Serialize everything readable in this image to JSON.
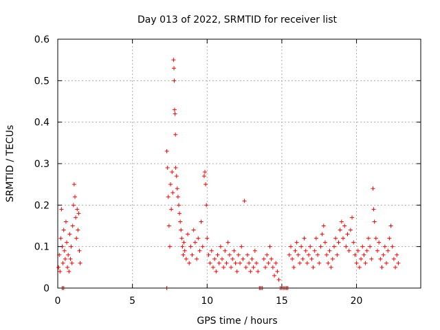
{
  "chart_data": {
    "type": "scatter",
    "title": "Day 013 of 2022, SRMTID for receiver list",
    "xlabel": "GPS time / hours",
    "ylabel": "SRMTID / TECUs",
    "xlim": [
      0,
      24.3
    ],
    "ylim": [
      0,
      0.6
    ],
    "xticks": [
      0,
      5,
      10,
      15,
      20
    ],
    "yticks": [
      0,
      0.1,
      0.2,
      0.3,
      0.4,
      0.5,
      0.6
    ],
    "xtick_labels": [
      "0",
      "5",
      "10",
      "15",
      "20"
    ],
    "ytick_labels": [
      "0",
      "0.1",
      "0.2",
      "0.3",
      "0.4",
      "0.5",
      "0.6"
    ],
    "grid": true,
    "marker": "+",
    "color": "#ff0000",
    "series": [
      {
        "name": "SRMTID",
        "points": [
          [
            0.05,
            0.05
          ],
          [
            0.1,
            0.08
          ],
          [
            0.15,
            0.04
          ],
          [
            0.2,
            0.12
          ],
          [
            0.25,
            0.19
          ],
          [
            0.3,
            0.1
          ],
          [
            0.35,
            0.06
          ],
          [
            0.4,
            0.14
          ],
          [
            0.45,
            0.09
          ],
          [
            0.5,
            0.07
          ],
          [
            0.55,
            0.16
          ],
          [
            0.6,
            0.11
          ],
          [
            0.65,
            0.05
          ],
          [
            0.7,
            0.08
          ],
          [
            0.75,
            0.04
          ],
          [
            0.8,
            0.13
          ],
          [
            0.85,
            0.07
          ],
          [
            0.9,
            0.1
          ],
          [
            0.95,
            0.06
          ],
          [
            1.0,
            0.15
          ],
          [
            1.05,
            0.2
          ],
          [
            1.1,
            0.25
          ],
          [
            1.15,
            0.22
          ],
          [
            1.2,
            0.17
          ],
          [
            1.25,
            0.12
          ],
          [
            1.3,
            0.19
          ],
          [
            1.35,
            0.14
          ],
          [
            1.4,
            0.18
          ],
          [
            1.45,
            0.09
          ],
          [
            1.5,
            0.06
          ],
          [
            0.3,
            0.0
          ],
          [
            0.4,
            0.0
          ],
          [
            7.3,
            0.0
          ],
          [
            13.5,
            0.0
          ],
          [
            13.6,
            0.0
          ],
          [
            13.7,
            0.0
          ],
          [
            14.9,
            0.0
          ],
          [
            15.0,
            0.0
          ],
          [
            15.1,
            0.0
          ],
          [
            15.2,
            0.0
          ],
          [
            15.3,
            0.0
          ],
          [
            15.4,
            0.0
          ],
          [
            7.3,
            0.33
          ],
          [
            7.35,
            0.29
          ],
          [
            7.4,
            0.22
          ],
          [
            7.45,
            0.15
          ],
          [
            7.5,
            0.1
          ],
          [
            7.55,
            0.25
          ],
          [
            7.6,
            0.19
          ],
          [
            7.65,
            0.28
          ],
          [
            7.7,
            0.23
          ],
          [
            7.75,
            0.55
          ],
          [
            7.78,
            0.53
          ],
          [
            7.8,
            0.5
          ],
          [
            7.82,
            0.43
          ],
          [
            7.85,
            0.42
          ],
          [
            7.88,
            0.37
          ],
          [
            7.9,
            0.29
          ],
          [
            7.95,
            0.27
          ],
          [
            8.0,
            0.24
          ],
          [
            8.05,
            0.22
          ],
          [
            8.1,
            0.2
          ],
          [
            8.15,
            0.18
          ],
          [
            8.2,
            0.16
          ],
          [
            8.25,
            0.14
          ],
          [
            8.3,
            0.12
          ],
          [
            8.35,
            0.1
          ],
          [
            8.4,
            0.08
          ],
          [
            8.45,
            0.11
          ],
          [
            8.5,
            0.09
          ],
          [
            8.6,
            0.07
          ],
          [
            8.7,
            0.13
          ],
          [
            8.8,
            0.06
          ],
          [
            8.9,
            0.1
          ],
          [
            9.0,
            0.08
          ],
          [
            9.1,
            0.14
          ],
          [
            9.2,
            0.11
          ],
          [
            9.3,
            0.07
          ],
          [
            9.4,
            0.12
          ],
          [
            9.5,
            0.09
          ],
          [
            9.6,
            0.16
          ],
          [
            9.7,
            0.1
          ],
          [
            9.8,
            0.27
          ],
          [
            9.85,
            0.28
          ],
          [
            9.9,
            0.25
          ],
          [
            9.95,
            0.2
          ],
          [
            10.0,
            0.12
          ],
          [
            10.1,
            0.08
          ],
          [
            10.2,
            0.06
          ],
          [
            10.3,
            0.09
          ],
          [
            10.4,
            0.05
          ],
          [
            10.5,
            0.07
          ],
          [
            10.6,
            0.04
          ],
          [
            10.7,
            0.08
          ],
          [
            10.8,
            0.06
          ],
          [
            10.9,
            0.1
          ],
          [
            11.0,
            0.07
          ],
          [
            11.1,
            0.05
          ],
          [
            11.2,
            0.09
          ],
          [
            11.3,
            0.06
          ],
          [
            11.4,
            0.11
          ],
          [
            11.5,
            0.08
          ],
          [
            11.6,
            0.05
          ],
          [
            11.7,
            0.07
          ],
          [
            11.8,
            0.09
          ],
          [
            11.9,
            0.06
          ],
          [
            12.0,
            0.04
          ],
          [
            12.1,
            0.08
          ],
          [
            12.2,
            0.06
          ],
          [
            12.3,
            0.1
          ],
          [
            12.4,
            0.07
          ],
          [
            12.5,
            0.21
          ],
          [
            12.6,
            0.05
          ],
          [
            12.7,
            0.08
          ],
          [
            12.8,
            0.06
          ],
          [
            12.9,
            0.04
          ],
          [
            13.0,
            0.07
          ],
          [
            13.1,
            0.05
          ],
          [
            13.2,
            0.09
          ],
          [
            13.3,
            0.06
          ],
          [
            13.4,
            0.04
          ],
          [
            13.8,
            0.07
          ],
          [
            13.9,
            0.05
          ],
          [
            14.0,
            0.08
          ],
          [
            14.1,
            0.06
          ],
          [
            14.2,
            0.1
          ],
          [
            14.3,
            0.07
          ],
          [
            14.4,
            0.05
          ],
          [
            14.5,
            0.03
          ],
          [
            14.6,
            0.06
          ],
          [
            14.7,
            0.04
          ],
          [
            14.8,
            0.02
          ],
          [
            15.5,
            0.08
          ],
          [
            15.6,
            0.1
          ],
          [
            15.7,
            0.07
          ],
          [
            15.8,
            0.05
          ],
          [
            15.9,
            0.09
          ],
          [
            16.0,
            0.11
          ],
          [
            16.1,
            0.08
          ],
          [
            16.2,
            0.06
          ],
          [
            16.3,
            0.1
          ],
          [
            16.4,
            0.07
          ],
          [
            16.5,
            0.12
          ],
          [
            16.6,
            0.09
          ],
          [
            16.7,
            0.06
          ],
          [
            16.8,
            0.08
          ],
          [
            16.9,
            0.1
          ],
          [
            17.0,
            0.07
          ],
          [
            17.1,
            0.05
          ],
          [
            17.2,
            0.09
          ],
          [
            17.3,
            0.12
          ],
          [
            17.4,
            0.08
          ],
          [
            17.5,
            0.06
          ],
          [
            17.6,
            0.1
          ],
          [
            17.7,
            0.13
          ],
          [
            17.8,
            0.15
          ],
          [
            17.9,
            0.11
          ],
          [
            18.0,
            0.08
          ],
          [
            18.1,
            0.06
          ],
          [
            18.2,
            0.09
          ],
          [
            18.3,
            0.05
          ],
          [
            18.4,
            0.07
          ],
          [
            18.5,
            0.1
          ],
          [
            18.6,
            0.12
          ],
          [
            18.7,
            0.08
          ],
          [
            18.8,
            0.11
          ],
          [
            18.9,
            0.14
          ],
          [
            19.0,
            0.16
          ],
          [
            19.1,
            0.12
          ],
          [
            19.2,
            0.15
          ],
          [
            19.3,
            0.1
          ],
          [
            19.4,
            0.13
          ],
          [
            19.5,
            0.09
          ],
          [
            19.6,
            0.14
          ],
          [
            19.7,
            0.17
          ],
          [
            19.8,
            0.11
          ],
          [
            19.9,
            0.08
          ],
          [
            20.0,
            0.06
          ],
          [
            20.1,
            0.09
          ],
          [
            20.2,
            0.05
          ],
          [
            20.3,
            0.07
          ],
          [
            20.4,
            0.1
          ],
          [
            20.5,
            0.08
          ],
          [
            20.6,
            0.06
          ],
          [
            20.7,
            0.09
          ],
          [
            20.8,
            0.12
          ],
          [
            20.9,
            0.1
          ],
          [
            21.0,
            0.07
          ],
          [
            21.1,
            0.24
          ],
          [
            21.15,
            0.19
          ],
          [
            21.2,
            0.16
          ],
          [
            21.3,
            0.12
          ],
          [
            21.4,
            0.09
          ],
          [
            21.5,
            0.11
          ],
          [
            21.6,
            0.07
          ],
          [
            21.7,
            0.05
          ],
          [
            21.8,
            0.08
          ],
          [
            21.9,
            0.1
          ],
          [
            22.0,
            0.06
          ],
          [
            22.1,
            0.09
          ],
          [
            22.2,
            0.12
          ],
          [
            22.3,
            0.15
          ],
          [
            22.4,
            0.1
          ],
          [
            22.5,
            0.07
          ],
          [
            22.6,
            0.05
          ],
          [
            22.7,
            0.08
          ],
          [
            22.8,
            0.06
          ]
        ]
      }
    ]
  }
}
